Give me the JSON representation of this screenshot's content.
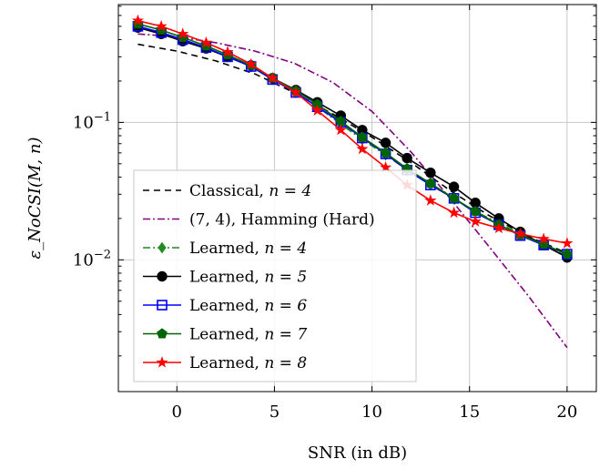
{
  "chart_data": {
    "type": "line",
    "title": "",
    "xlabel": "SNR (in dB)",
    "ylabel": "ε_NoCSI(M, n)",
    "xlim": [
      -3,
      21.5
    ],
    "ylim": [
      0.0011,
      0.72
    ],
    "yscale": "log",
    "grid": true,
    "legend_position": "lower-left",
    "x_ticks": [
      0,
      5,
      10,
      15,
      20
    ],
    "x_tick_labels": [
      "0",
      "5",
      "10",
      "15",
      "20"
    ],
    "y_ticks": [
      0.01,
      0.1
    ],
    "y_tick_labels": [
      "10^-2",
      "10^-1"
    ],
    "series": [
      {
        "name": "Classical, n = 4",
        "label_text": "Classical, ",
        "label_var": "n = 4",
        "color": "#000000",
        "dash": "7,5",
        "marker": "none",
        "x": [
          -2,
          0,
          2,
          4,
          6,
          8,
          10,
          12,
          14,
          16,
          18,
          20
        ],
        "y": [
          0.37,
          0.33,
          0.28,
          0.225,
          0.165,
          0.115,
          0.078,
          0.051,
          0.032,
          0.021,
          0.0148,
          0.0112
        ]
      },
      {
        "name": "(7,4), Hamming (Hard)",
        "label_text": "(7, 4), Hamming (Hard)",
        "label_var": "",
        "color": "#800080",
        "dash": "8,3,2,3",
        "marker": "none",
        "x": [
          -2,
          0,
          2,
          4,
          6,
          8,
          10,
          12,
          14,
          16,
          18,
          20
        ],
        "y": [
          0.44,
          0.42,
          0.38,
          0.33,
          0.27,
          0.195,
          0.12,
          0.061,
          0.028,
          0.0125,
          0.0055,
          0.0023
        ]
      },
      {
        "name": "Learned, n = 4",
        "label_text": "Learned, ",
        "label_var": "n = 4",
        "color": "#228B22",
        "dash": "8,3,2,3",
        "marker": "diamond",
        "x": [
          -2,
          -0.8,
          0.3,
          1.5,
          2.6,
          3.8,
          4.9,
          6.1,
          7.2,
          8.4,
          9.5,
          10.7,
          11.8,
          13,
          14.2,
          15.3,
          16.5,
          17.6,
          18.8,
          20
        ],
        "y": [
          0.5,
          0.45,
          0.4,
          0.35,
          0.3,
          0.255,
          0.205,
          0.165,
          0.13,
          0.097,
          0.075,
          0.058,
          0.045,
          0.035,
          0.028,
          0.0225,
          0.0185,
          0.0155,
          0.013,
          0.0105
        ]
      },
      {
        "name": "Learned, n = 5",
        "label_text": "Learned, ",
        "label_var": "n = 5",
        "color": "#000000",
        "dash": "",
        "marker": "circle",
        "x": [
          -2,
          -0.8,
          0.3,
          1.5,
          2.6,
          3.8,
          4.9,
          6.1,
          7.2,
          8.4,
          9.5,
          10.7,
          11.8,
          13,
          14.2,
          15.3,
          16.5,
          17.6,
          18.8,
          20
        ],
        "y": [
          0.49,
          0.44,
          0.39,
          0.345,
          0.3,
          0.26,
          0.21,
          0.172,
          0.14,
          0.112,
          0.088,
          0.071,
          0.055,
          0.043,
          0.034,
          0.026,
          0.02,
          0.016,
          0.0128,
          0.0104
        ]
      },
      {
        "name": "Learned, n = 6",
        "label_text": "Learned, ",
        "label_var": "n = 6",
        "color": "#0000FF",
        "dash": "",
        "marker": "square",
        "x": [
          -2,
          -0.8,
          0.3,
          1.5,
          2.6,
          3.8,
          4.9,
          6.1,
          7.2,
          8.4,
          9.5,
          10.7,
          11.8,
          13,
          14.2,
          15.3,
          16.5,
          17.6,
          18.8,
          20
        ],
        "y": [
          0.5,
          0.45,
          0.4,
          0.35,
          0.3,
          0.255,
          0.205,
          0.165,
          0.13,
          0.1,
          0.077,
          0.059,
          0.045,
          0.035,
          0.028,
          0.022,
          0.018,
          0.015,
          0.0128,
          0.011
        ]
      },
      {
        "name": "Learned, n = 7",
        "label_text": "Learned, ",
        "label_var": "n = 7",
        "color": "#006400",
        "dash": "",
        "marker": "pentagon",
        "x": [
          -2,
          -0.8,
          0.3,
          1.5,
          2.6,
          3.8,
          4.9,
          6.1,
          7.2,
          8.4,
          9.5,
          10.7,
          11.8,
          13,
          14.2,
          15.3,
          16.5,
          17.6,
          18.8,
          20
        ],
        "y": [
          0.52,
          0.47,
          0.415,
          0.36,
          0.31,
          0.26,
          0.21,
          0.17,
          0.135,
          0.102,
          0.078,
          0.06,
          0.046,
          0.036,
          0.028,
          0.0225,
          0.018,
          0.0152,
          0.013,
          0.011
        ]
      },
      {
        "name": "Learned, n = 8",
        "label_text": "Learned, ",
        "label_var": "n = 8",
        "color": "#FF0000",
        "dash": "",
        "marker": "star",
        "x": [
          -2,
          -0.8,
          0.3,
          1.5,
          2.6,
          3.8,
          4.9,
          6.1,
          7.2,
          8.4,
          9.5,
          10.7,
          11.8,
          13,
          14.2,
          15.3,
          16.5,
          17.6,
          18.8,
          20
        ],
        "y": [
          0.55,
          0.5,
          0.44,
          0.38,
          0.325,
          0.265,
          0.21,
          0.165,
          0.122,
          0.088,
          0.064,
          0.047,
          0.035,
          0.027,
          0.022,
          0.019,
          0.017,
          0.0155,
          0.0142,
          0.0132
        ]
      }
    ]
  }
}
